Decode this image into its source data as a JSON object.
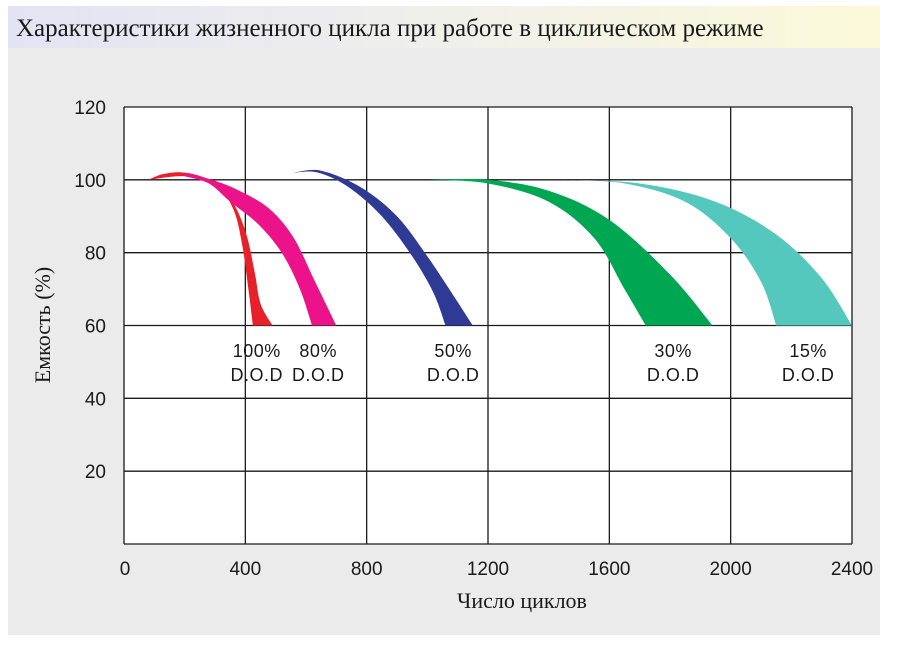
{
  "chart_data": {
    "type": "area",
    "title": "Характеристики жизненного цикла при работе в циклическом режиме",
    "xlabel": "Число циклов",
    "ylabel": "Емкость (%)",
    "xlim": [
      0,
      2400
    ],
    "ylim": [
      0,
      120
    ],
    "x_ticks": [
      0,
      400,
      800,
      1200,
      1600,
      2000,
      2400
    ],
    "y_ticks": [
      20,
      40,
      60,
      80,
      100,
      120
    ],
    "grid": true,
    "series": [
      {
        "label_lines": [
          "100%",
          "D.O.D"
        ],
        "color": "#e8202a",
        "upper": [
          [
            80,
            100
          ],
          [
            130,
            101.6
          ],
          [
            200,
            102
          ],
          [
            280,
            100
          ],
          [
            350,
            95
          ],
          [
            400,
            86
          ],
          [
            430,
            75
          ],
          [
            450,
            66
          ],
          [
            490,
            60
          ]
        ],
        "lower": [
          [
            80,
            100
          ],
          [
            200,
            101
          ],
          [
            300,
            99
          ],
          [
            360,
            92
          ],
          [
            390,
            82
          ],
          [
            410,
            70
          ],
          [
            425,
            60
          ]
        ]
      },
      {
        "label_lines": [
          "80%",
          "D.O.D"
        ],
        "color": "#ec138a",
        "upper": [
          [
            200,
            102
          ],
          [
            290,
            100
          ],
          [
            380,
            97
          ],
          [
            480,
            92
          ],
          [
            560,
            84
          ],
          [
            630,
            72
          ],
          [
            700,
            60
          ]
        ],
        "lower": [
          [
            200,
            101
          ],
          [
            280,
            99
          ],
          [
            350,
            94
          ],
          [
            440,
            88
          ],
          [
            520,
            80
          ],
          [
            580,
            70
          ],
          [
            620,
            60
          ]
        ]
      },
      {
        "label_lines": [
          "50%",
          "D.O.D"
        ],
        "color": "#2f3a94",
        "upper": [
          [
            560,
            102
          ],
          [
            650,
            102.5
          ],
          [
            780,
            98
          ],
          [
            900,
            90
          ],
          [
            1000,
            79
          ],
          [
            1080,
            69
          ],
          [
            1150,
            60
          ]
        ],
        "lower": [
          [
            560,
            102
          ],
          [
            640,
            102
          ],
          [
            740,
            98
          ],
          [
            850,
            90
          ],
          [
            950,
            79
          ],
          [
            1020,
            69
          ],
          [
            1060,
            60
          ]
        ]
      },
      {
        "label_lines": [
          "30%",
          "D.O.D"
        ],
        "color": "#00a652",
        "upper": [
          [
            1000,
            100
          ],
          [
            1200,
            100
          ],
          [
            1400,
            97
          ],
          [
            1600,
            89
          ],
          [
            1800,
            74
          ],
          [
            1940,
            60
          ]
        ],
        "lower": [
          [
            1000,
            100
          ],
          [
            1200,
            99
          ],
          [
            1400,
            94
          ],
          [
            1550,
            84
          ],
          [
            1650,
            70
          ],
          [
            1720,
            60
          ]
        ]
      },
      {
        "label_lines": [
          "15%",
          "D.O.D"
        ],
        "color": "#55c8bd",
        "upper": [
          [
            1430,
            100
          ],
          [
            1700,
            99
          ],
          [
            1950,
            94
          ],
          [
            2150,
            85
          ],
          [
            2300,
            73
          ],
          [
            2400,
            60
          ]
        ],
        "lower": [
          [
            1430,
            100
          ],
          [
            1650,
            99
          ],
          [
            1850,
            94
          ],
          [
            2000,
            84
          ],
          [
            2100,
            72
          ],
          [
            2150,
            60
          ]
        ]
      }
    ]
  }
}
